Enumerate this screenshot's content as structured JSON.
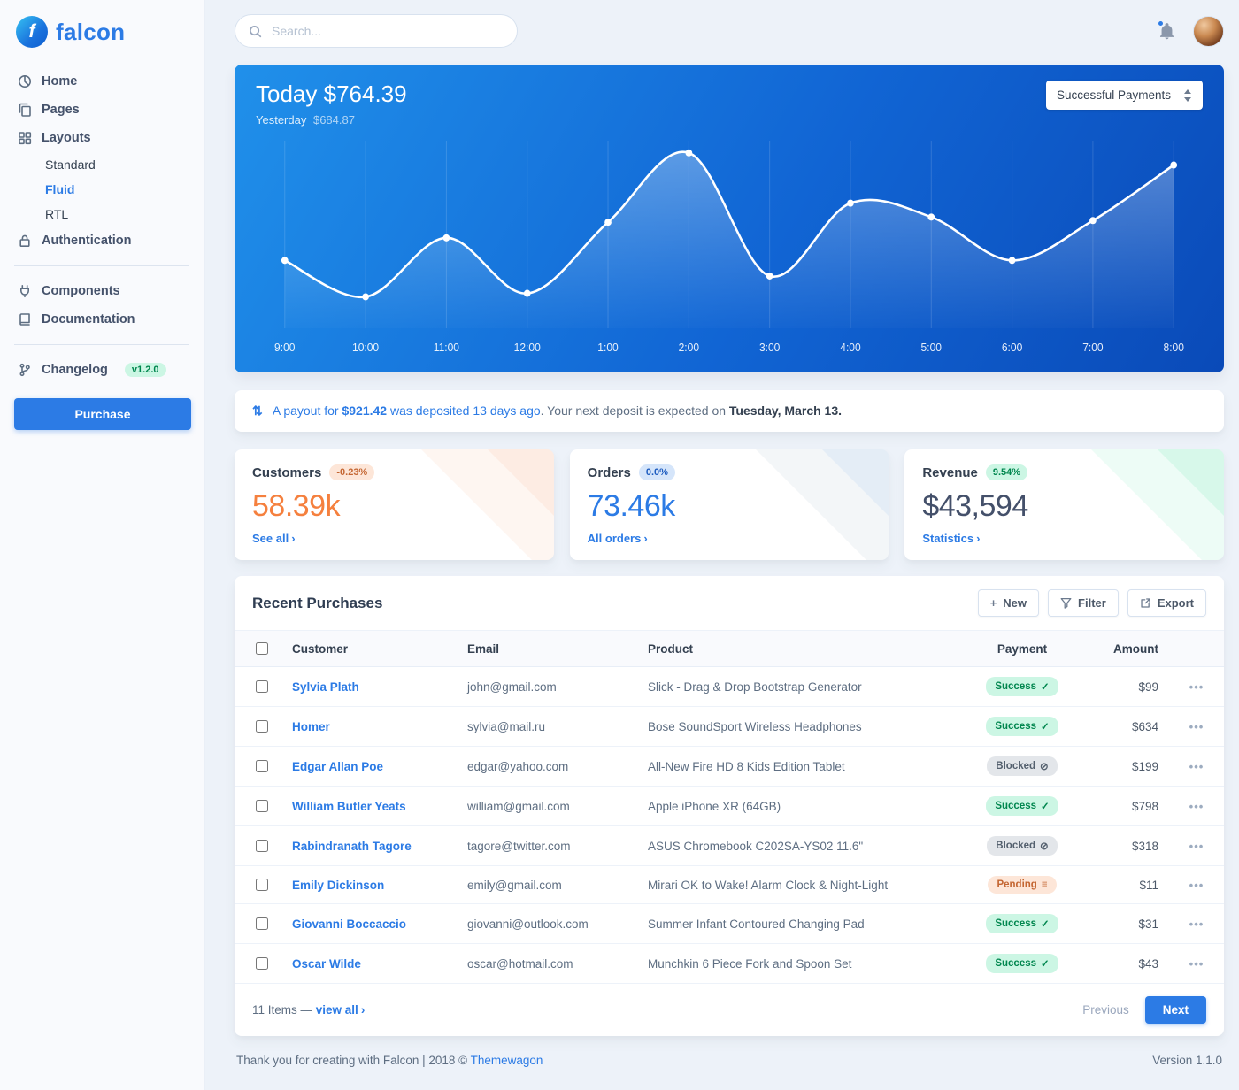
{
  "colors": {
    "accent": "#2c7be5",
    "success": "#00864e",
    "warning": "#c46632",
    "orange": "#f5803e",
    "green": "#00d27a"
  },
  "ui": {
    "chevron_right": "›",
    "plus": "+",
    "payout_arrows": "⇅",
    "dots_menu": "•••"
  },
  "sidebar": {
    "brand": "falcon",
    "brand_letter": "f",
    "items": [
      {
        "label": "Home"
      },
      {
        "label": "Pages"
      },
      {
        "label": "Layouts"
      },
      {
        "label": "Standard"
      },
      {
        "label": "Fluid"
      },
      {
        "label": "RTL"
      },
      {
        "label": "Authentication"
      },
      {
        "label": "Components"
      },
      {
        "label": "Documentation"
      },
      {
        "label": "Changelog"
      }
    ],
    "changelog_badge": "v1.2.0",
    "purchase_label": "Purchase"
  },
  "header": {
    "search_placeholder": "Search..."
  },
  "chart_card": {
    "today_title": "Today $764.39",
    "yesterday_label": "Yesterday",
    "yesterday_value": "$684.87",
    "filter_selected": "Successful Payments"
  },
  "chart_data": {
    "type": "line",
    "title": "Successful Payments",
    "x": [
      "9:00",
      "10:00",
      "11:00",
      "12:00",
      "1:00",
      "2:00",
      "3:00",
      "4:00",
      "5:00",
      "6:00",
      "7:00",
      "8:00"
    ],
    "series": [
      {
        "name": "Successful Payments",
        "values": [
          33,
          12,
          46,
          14,
          55,
          95,
          24,
          66,
          58,
          33,
          56,
          88
        ]
      }
    ],
    "ylim": [
      0,
      100
    ],
    "y_axis_visible": false,
    "grid": "vertical",
    "line_color": "#ffffff",
    "legend_position": "none"
  },
  "payout": {
    "blue_prefix": "A payout for ",
    "amount": "$921.42",
    "blue_suffix": " was deposited 13 days ago",
    "gray_text": ". Your next deposit is expected on ",
    "date": "Tuesday, March 13."
  },
  "stats": [
    {
      "title": "Customers",
      "badge": "-0.23%",
      "value": "58.39k",
      "link": "See all"
    },
    {
      "title": "Orders",
      "badge": "0.0%",
      "value": "73.46k",
      "link": "All orders"
    },
    {
      "title": "Revenue",
      "badge": "9.54%",
      "value": "$43,594",
      "link": "Statistics"
    }
  ],
  "purchases": {
    "title": "Recent Purchases",
    "actions": {
      "new": "New",
      "filter": "Filter",
      "export": "Export"
    },
    "columns": [
      "Customer",
      "Email",
      "Product",
      "Payment",
      "Amount"
    ],
    "status_icons": {
      "success": "✓",
      "blocked": "⊘",
      "pending": "≡"
    },
    "rows": [
      {
        "customer": "Sylvia Plath",
        "email": "john@gmail.com",
        "product": "Slick - Drag & Drop Bootstrap Generator",
        "status": "success",
        "status_label": "Success",
        "amount": "$99"
      },
      {
        "customer": "Homer",
        "email": "sylvia@mail.ru",
        "product": "Bose SoundSport Wireless Headphones",
        "status": "success",
        "status_label": "Success",
        "amount": "$634"
      },
      {
        "customer": "Edgar Allan Poe",
        "email": "edgar@yahoo.com",
        "product": "All-New Fire HD 8 Kids Edition Tablet",
        "status": "blocked",
        "status_label": "Blocked",
        "amount": "$199"
      },
      {
        "customer": "William Butler Yeats",
        "email": "william@gmail.com",
        "product": "Apple iPhone XR (64GB)",
        "status": "success",
        "status_label": "Success",
        "amount": "$798"
      },
      {
        "customer": "Rabindranath Tagore",
        "email": "tagore@twitter.com",
        "product": "ASUS Chromebook C202SA-YS02 11.6\"",
        "status": "blocked",
        "status_label": "Blocked",
        "amount": "$318"
      },
      {
        "customer": "Emily Dickinson",
        "email": "emily@gmail.com",
        "product": "Mirari OK to Wake! Alarm Clock & Night-Light",
        "status": "pending",
        "status_label": "Pending",
        "amount": "$11"
      },
      {
        "customer": "Giovanni Boccaccio",
        "email": "giovanni@outlook.com",
        "product": "Summer Infant Contoured Changing Pad",
        "status": "success",
        "status_label": "Success",
        "amount": "$31"
      },
      {
        "customer": "Oscar Wilde",
        "email": "oscar@hotmail.com",
        "product": "Munchkin 6 Piece Fork and Spoon Set",
        "status": "success",
        "status_label": "Success",
        "amount": "$43"
      }
    ],
    "footer": {
      "count_text": "11 Items — ",
      "view_all": "view all",
      "previous": "Previous",
      "next": "Next"
    }
  },
  "footer": {
    "thanks": "Thank you for creating with Falcon | 2018 © ",
    "link": "Themewagon",
    "version": "Version 1.1.0"
  }
}
